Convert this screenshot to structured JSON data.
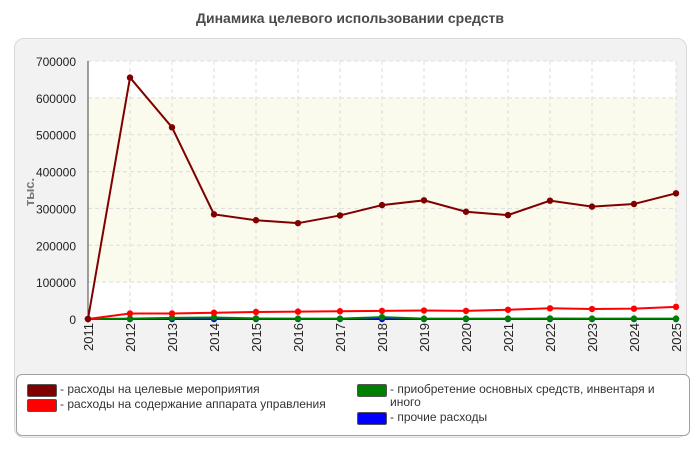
{
  "chart_data": {
    "type": "line",
    "title": "Динамика целевого использовании средств",
    "ylabel": "тыс.",
    "xlabel": "",
    "x": [
      "2011",
      "2012",
      "2013",
      "2014",
      "2015",
      "2016",
      "2017",
      "2018",
      "2019",
      "2020",
      "2021",
      "2022",
      "2023",
      "2024",
      "2025"
    ],
    "ylim": [
      0,
      700000
    ],
    "yticks": [
      "0",
      "100000",
      "200000",
      "300000",
      "400000",
      "500000",
      "600000",
      "700000"
    ],
    "grid": true,
    "legend_position": "bottom",
    "series": [
      {
        "name": "- расходы на целевые мероприятия",
        "color": "#800000",
        "values": [
          0,
          655000,
          520000,
          284000,
          268000,
          260000,
          281000,
          309000,
          322000,
          291000,
          282000,
          321000,
          305000,
          312000,
          341000
        ]
      },
      {
        "name": "- расходы на содержание аппарата управления",
        "color": "#ff0000",
        "values": [
          0,
          15000,
          15000,
          17000,
          19000,
          20000,
          21000,
          22000,
          23000,
          22000,
          25000,
          29000,
          27000,
          28000,
          33000
        ]
      },
      {
        "name": "- приобретение основных средств, инвентаря и иного",
        "color": "#008000",
        "values": [
          0,
          1000,
          3000,
          4000,
          1500,
          1000,
          1000,
          5000,
          1000,
          1000,
          1000,
          1500,
          1000,
          1000,
          1000
        ]
      },
      {
        "name": "- прочие расходы",
        "color": "#0000ff",
        "values": [
          0,
          0,
          0,
          0,
          0,
          0,
          0,
          0,
          0,
          0,
          0,
          0,
          0,
          0,
          0
        ]
      }
    ]
  }
}
